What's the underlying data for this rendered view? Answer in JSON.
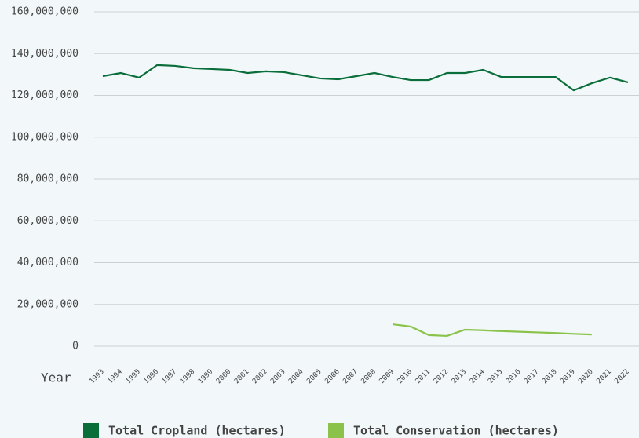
{
  "chart_data": {
    "type": "line",
    "x_label": "Year",
    "categories": [
      "1993",
      "1994",
      "1995",
      "1996",
      "1997",
      "1998",
      "1999",
      "2000",
      "2001",
      "2002",
      "2003",
      "2004",
      "2005",
      "2006",
      "2007",
      "2008",
      "2009",
      "2010",
      "2011",
      "2012",
      "2013",
      "2014",
      "2015",
      "2016",
      "2017",
      "2018",
      "2019",
      "2020",
      "2021",
      "2022"
    ],
    "series": [
      {
        "name": "Total Cropland (hectares)",
        "color": "#0a6e3a",
        "values": [
          129200000,
          130700000,
          128500000,
          134500000,
          134100000,
          133000000,
          132600000,
          132200000,
          130700000,
          131500000,
          131100000,
          129600000,
          128100000,
          127700000,
          129200000,
          130700000,
          128800000,
          127300000,
          127300000,
          130700000,
          130700000,
          132200000,
          128800000,
          128800000,
          128800000,
          128800000,
          122400000,
          125800000,
          128500000,
          126200000
        ]
      },
      {
        "name": "Total Conservation (hectares)",
        "color": "#8bc34a",
        "values": [
          null,
          null,
          null,
          null,
          null,
          null,
          null,
          null,
          null,
          null,
          null,
          null,
          null,
          null,
          null,
          null,
          10500000,
          9400000,
          5300000,
          4900000,
          7900000,
          7600000,
          7200000,
          6900000,
          6600000,
          6300000,
          5900000,
          5600000,
          null,
          null
        ]
      }
    ],
    "ylim": [
      0,
      160000000
    ],
    "yticks": [
      {
        "value": 0,
        "label": "0"
      },
      {
        "value": 20000000,
        "label": "20,000,000"
      },
      {
        "value": 40000000,
        "label": "40,000,000"
      },
      {
        "value": 60000000,
        "label": "60,000,000"
      },
      {
        "value": 80000000,
        "label": "80,000,000"
      },
      {
        "value": 100000000,
        "label": "100,000,000"
      },
      {
        "value": 120000000,
        "label": "120,000,000"
      },
      {
        "value": 140000000,
        "label": "140,000,000"
      },
      {
        "value": 160000000,
        "label": "160,000,000"
      }
    ],
    "grid": true
  }
}
